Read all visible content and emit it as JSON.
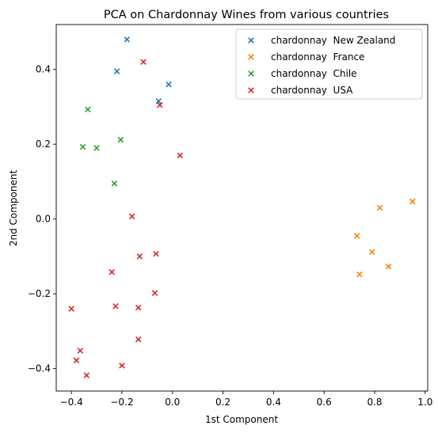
{
  "chart_data": {
    "type": "scatter",
    "title": "PCA on Chardonnay Wines from various countries",
    "xlabel": "1st Component",
    "ylabel": "2nd Component",
    "xlim": [
      -0.46,
      1.01
    ],
    "ylim": [
      -0.46,
      0.52
    ],
    "xticks": [
      -0.4,
      -0.2,
      0.0,
      0.2,
      0.4,
      0.6,
      0.8,
      1.0
    ],
    "xtick_labels": [
      "−0.4",
      "−0.2",
      "0.0",
      "0.2",
      "0.4",
      "0.6",
      "0.8",
      "1.0"
    ],
    "yticks": [
      -0.4,
      -0.2,
      0.0,
      0.2,
      0.4
    ],
    "ytick_labels": [
      "−0.4",
      "−0.2",
      "0.0",
      "0.2",
      "0.4"
    ],
    "grid": false,
    "legend_position": "top-right",
    "marker": "x",
    "series": [
      {
        "name": "chardonnay  New Zealand",
        "color": "#1f77b4",
        "points": [
          [
            -0.18,
            0.48
          ],
          [
            -0.22,
            0.395
          ],
          [
            -0.015,
            0.36
          ],
          [
            -0.055,
            0.315
          ]
        ]
      },
      {
        "name": "chardonnay  France",
        "color": "#ff7f0e",
        "points": [
          [
            0.95,
            0.047
          ],
          [
            0.82,
            0.03
          ],
          [
            0.73,
            -0.045
          ],
          [
            0.79,
            -0.088
          ],
          [
            0.855,
            -0.127
          ],
          [
            0.74,
            -0.148
          ]
        ]
      },
      {
        "name": "chardonnay  Chile",
        "color": "#2ca02c",
        "points": [
          [
            -0.335,
            0.293
          ],
          [
            -0.205,
            0.212
          ],
          [
            -0.355,
            0.193
          ],
          [
            -0.3,
            0.19
          ],
          [
            -0.23,
            0.095
          ]
        ]
      },
      {
        "name": "chardonnay  USA",
        "color": "#d62728",
        "points": [
          [
            -0.115,
            0.42
          ],
          [
            -0.05,
            0.305
          ],
          [
            0.03,
            0.17
          ],
          [
            -0.16,
            0.007
          ],
          [
            -0.13,
            -0.1
          ],
          [
            -0.065,
            -0.093
          ],
          [
            -0.24,
            -0.142
          ],
          [
            -0.07,
            -0.198
          ],
          [
            -0.225,
            -0.233
          ],
          [
            -0.135,
            -0.237
          ],
          [
            -0.4,
            -0.24
          ],
          [
            -0.135,
            -0.322
          ],
          [
            -0.365,
            -0.352
          ],
          [
            -0.38,
            -0.378
          ],
          [
            -0.2,
            -0.392
          ],
          [
            -0.34,
            -0.418
          ]
        ]
      }
    ]
  }
}
